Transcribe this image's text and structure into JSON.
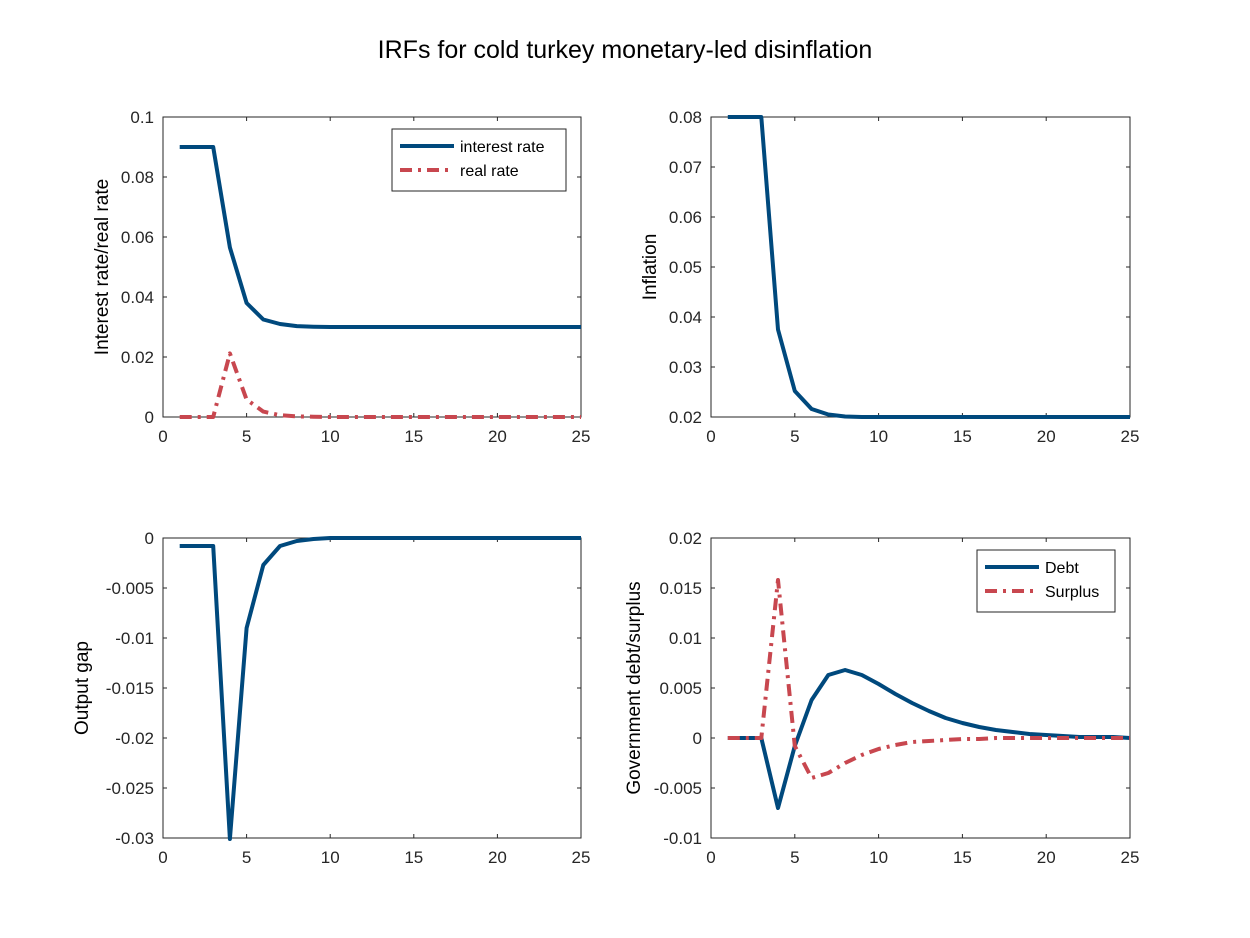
{
  "title": "IRFs for cold turkey monetary-led disinflation",
  "colors": {
    "blue": "#00497d",
    "red": "#c8474f",
    "axis": "#262626"
  },
  "chart_data": [
    {
      "type": "line",
      "ylabel": "Interest rate/real rate",
      "xlim": [
        0,
        25
      ],
      "ylim": [
        0,
        0.1
      ],
      "xticks": [
        "0",
        "5",
        "10",
        "15",
        "20",
        "25"
      ],
      "yticks": [
        "0",
        "0.02",
        "0.04",
        "0.06",
        "0.08",
        "0.1"
      ],
      "legend": "top-right",
      "x": [
        1,
        2,
        3,
        4,
        5,
        6,
        7,
        8,
        9,
        10,
        11,
        12,
        13,
        14,
        15,
        16,
        17,
        18,
        19,
        20,
        21,
        22,
        23,
        24,
        25
      ],
      "series": [
        {
          "name": "interest rate",
          "style": "solid",
          "color": "#00497d",
          "values": [
            0.09,
            0.09,
            0.09,
            0.0565,
            0.038,
            0.0325,
            0.031,
            0.0303,
            0.0301,
            0.03,
            0.03,
            0.03,
            0.03,
            0.03,
            0.03,
            0.03,
            0.03,
            0.03,
            0.03,
            0.03,
            0.03,
            0.03,
            0.03,
            0.03,
            0.03
          ]
        },
        {
          "name": "real rate",
          "style": "dashdot",
          "color": "#c8474f",
          "values": [
            0,
            0,
            0,
            0.0212,
            0.0058,
            0.0018,
            0.0006,
            0.0002,
            0.0001,
            0,
            0,
            0,
            0,
            0,
            0,
            0,
            0,
            0,
            0,
            0,
            0,
            0,
            0,
            0,
            0
          ]
        }
      ]
    },
    {
      "type": "line",
      "ylabel": "Inflation",
      "xlim": [
        0,
        25
      ],
      "ylim": [
        0.02,
        0.08
      ],
      "xticks": [
        "0",
        "5",
        "10",
        "15",
        "20",
        "25"
      ],
      "yticks": [
        "0.02",
        "0.03",
        "0.04",
        "0.05",
        "0.06",
        "0.07",
        "0.08"
      ],
      "x": [
        1,
        2,
        3,
        4,
        5,
        6,
        7,
        8,
        9,
        10,
        11,
        12,
        13,
        14,
        15,
        16,
        17,
        18,
        19,
        20,
        21,
        22,
        23,
        24,
        25
      ],
      "series": [
        {
          "style": "solid",
          "color": "#00497d",
          "values": [
            0.08,
            0.08,
            0.08,
            0.0375,
            0.0252,
            0.0216,
            0.0205,
            0.0201,
            0.02,
            0.02,
            0.02,
            0.02,
            0.02,
            0.02,
            0.02,
            0.02,
            0.02,
            0.02,
            0.02,
            0.02,
            0.02,
            0.02,
            0.02,
            0.02,
            0.02
          ]
        }
      ]
    },
    {
      "type": "line",
      "ylabel": "Output gap",
      "xlim": [
        0,
        25
      ],
      "ylim": [
        -0.03,
        0
      ],
      "xticks": [
        "0",
        "5",
        "10",
        "15",
        "20",
        "25"
      ],
      "yticks": [
        "-0.03",
        "-0.025",
        "-0.02",
        "-0.015",
        "-0.01",
        "-0.005",
        "0"
      ],
      "x": [
        1,
        2,
        3,
        4,
        5,
        6,
        7,
        8,
        9,
        10,
        11,
        12,
        13,
        14,
        15,
        16,
        17,
        18,
        19,
        20,
        21,
        22,
        23,
        24,
        25
      ],
      "series": [
        {
          "style": "solid",
          "color": "#00497d",
          "values": [
            -0.0008,
            -0.0008,
            -0.0008,
            -0.0301,
            -0.009,
            -0.0027,
            -0.0008,
            -0.0003,
            -0.0001,
            0,
            0,
            0,
            0,
            0,
            0,
            0,
            0,
            0,
            0,
            0,
            0,
            0,
            0,
            0,
            0
          ]
        }
      ]
    },
    {
      "type": "line",
      "ylabel": "Government debt/surplus",
      "xlim": [
        0,
        25
      ],
      "ylim": [
        -0.01,
        0.02
      ],
      "xticks": [
        "0",
        "5",
        "10",
        "15",
        "20",
        "25"
      ],
      "yticks": [
        "-0.01",
        "-0.005",
        "0",
        "0.005",
        "0.01",
        "0.015",
        "0.02"
      ],
      "legend": "top-right",
      "x": [
        1,
        2,
        3,
        4,
        5,
        6,
        7,
        8,
        9,
        10,
        11,
        12,
        13,
        14,
        15,
        16,
        17,
        18,
        19,
        20,
        21,
        22,
        23,
        24,
        25
      ],
      "series": [
        {
          "name": "Debt",
          "style": "solid",
          "color": "#00497d",
          "values": [
            0,
            0,
            0,
            -0.007,
            -0.0008,
            0.0038,
            0.0063,
            0.0068,
            0.0063,
            0.0054,
            0.0044,
            0.0035,
            0.0027,
            0.002,
            0.0015,
            0.0011,
            0.0008,
            0.0006,
            0.0004,
            0.0003,
            0.0002,
            0.0001,
            0.0001,
            0.0001,
            0
          ]
        },
        {
          "name": "Surplus",
          "style": "dashdot",
          "color": "#c8474f",
          "values": [
            0,
            0,
            0,
            0.0158,
            -0.0008,
            -0.004,
            -0.0035,
            -0.0025,
            -0.0017,
            -0.0011,
            -0.0007,
            -0.0004,
            -0.0003,
            -0.0002,
            -0.0001,
            -0.0001,
            0,
            0,
            0,
            0,
            0,
            0,
            0,
            0,
            0
          ]
        }
      ]
    }
  ]
}
